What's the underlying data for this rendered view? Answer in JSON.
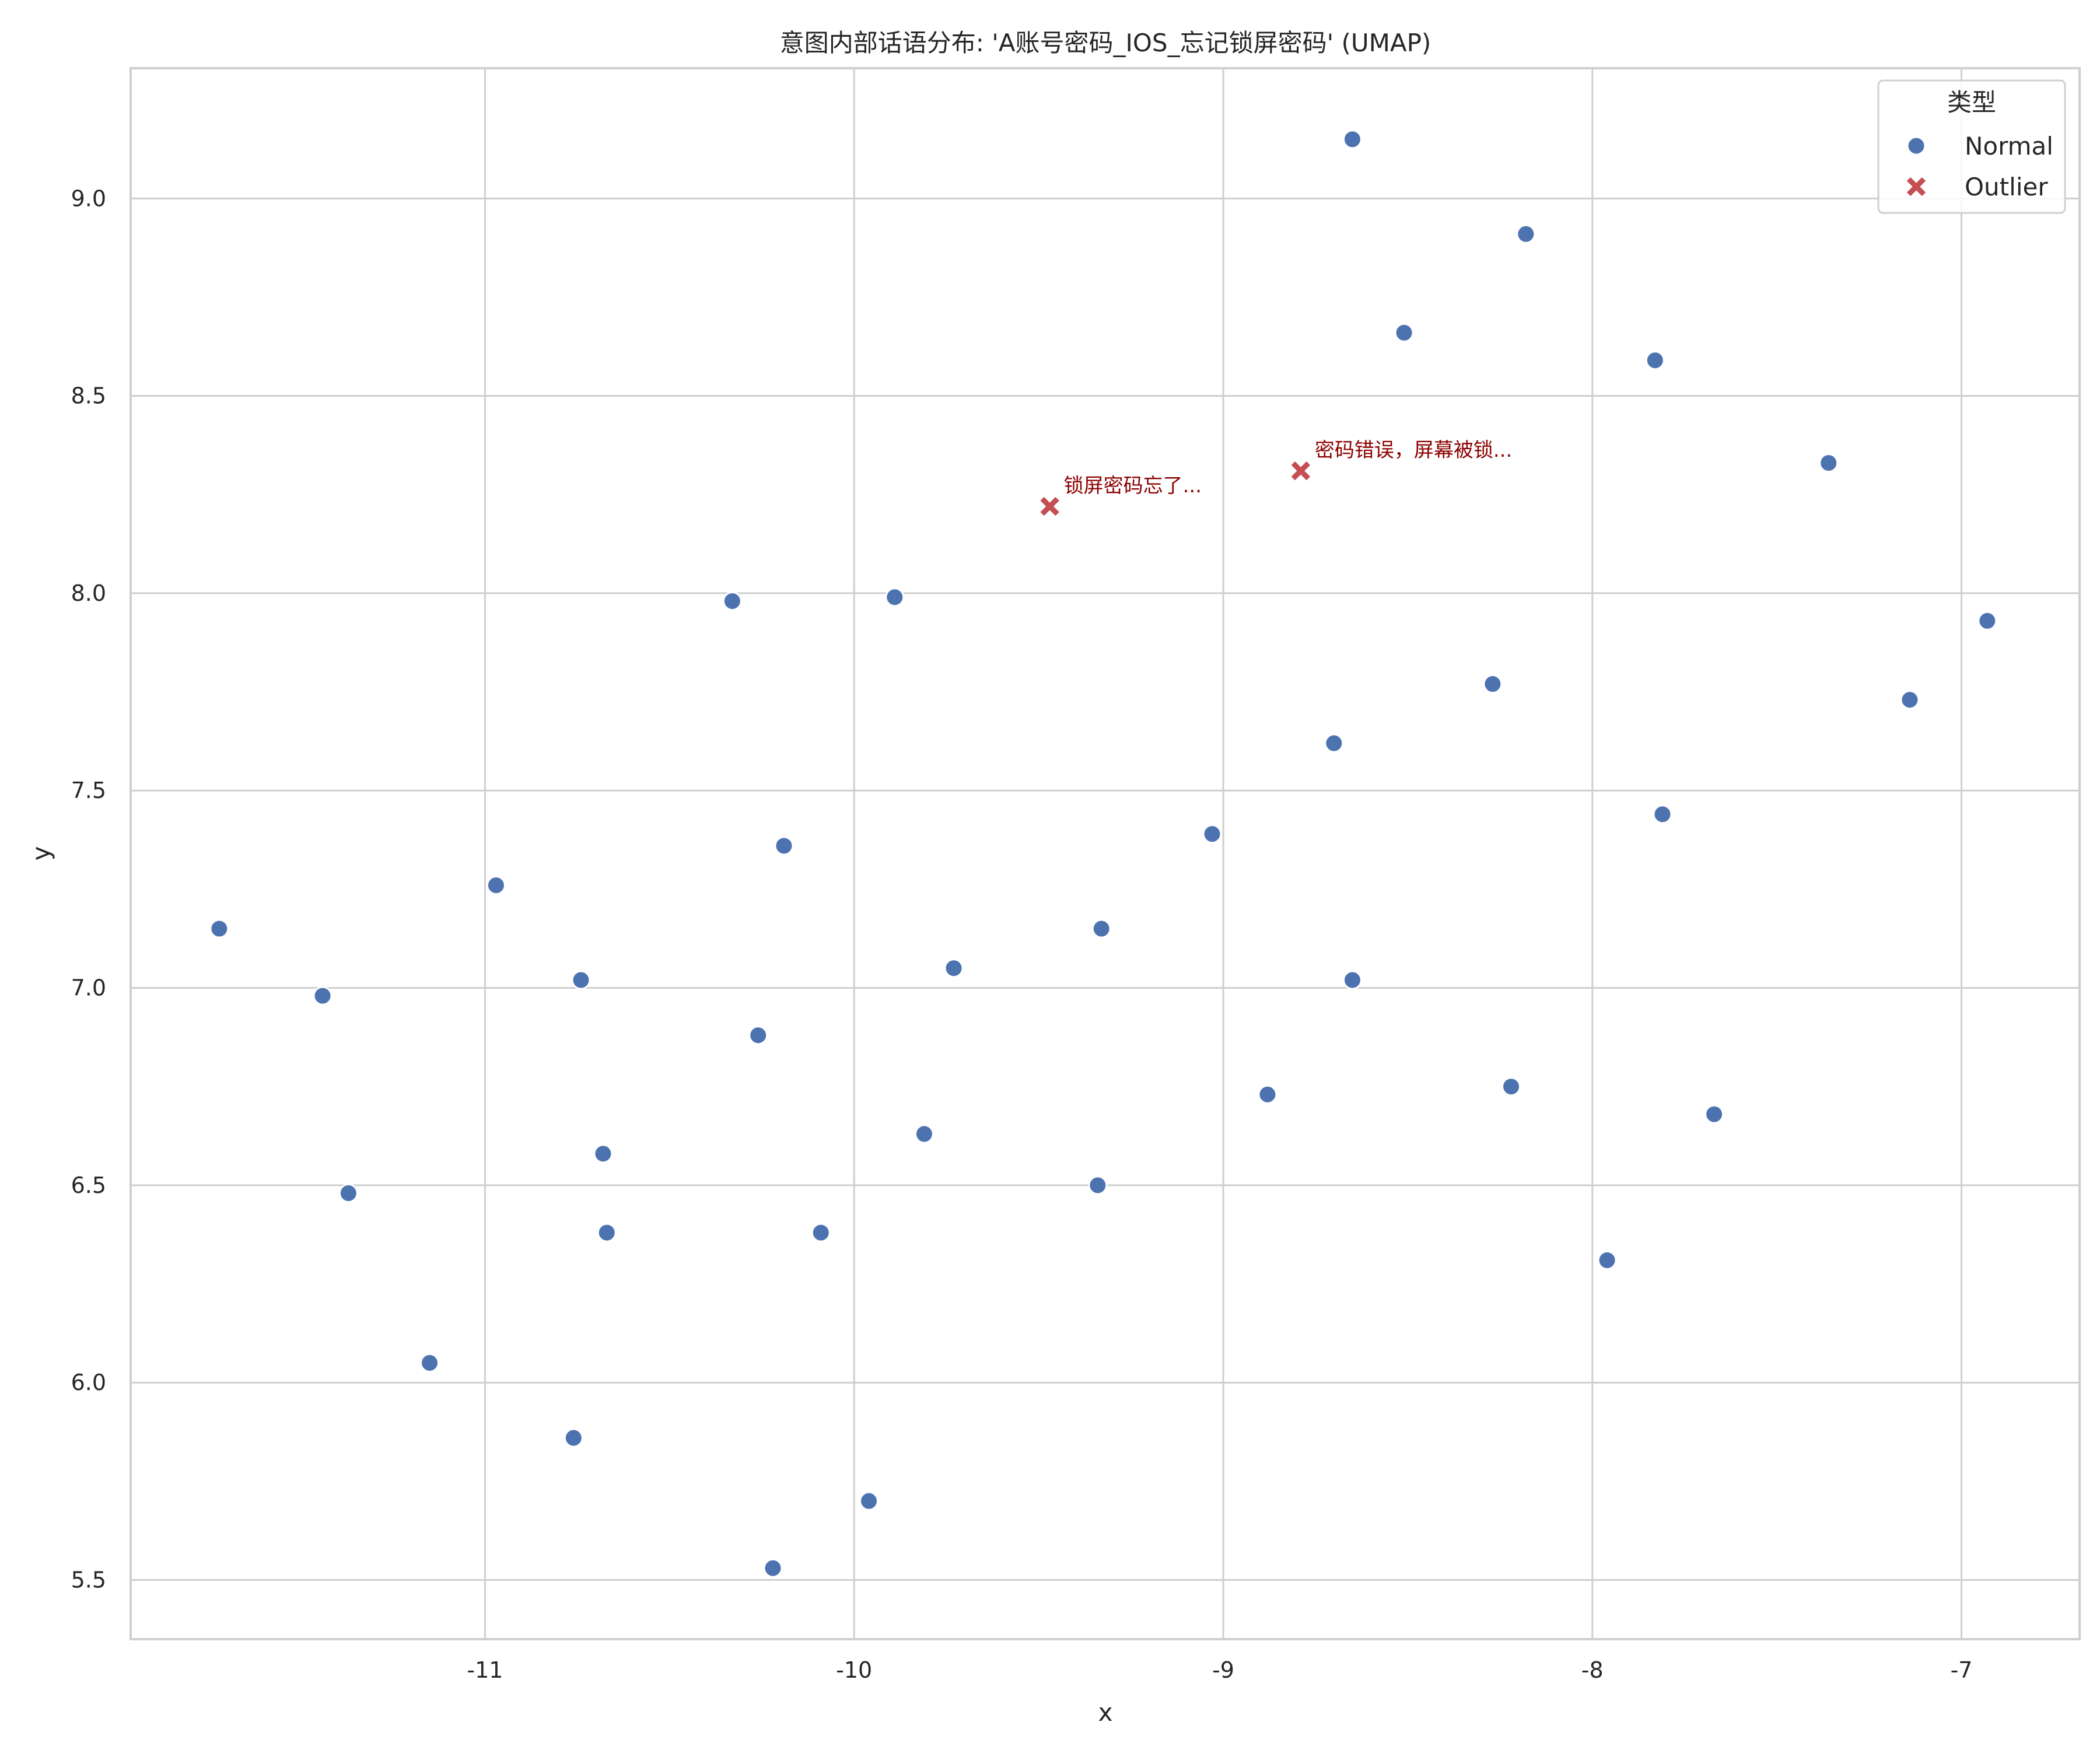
{
  "chart_data": {
    "type": "scatter",
    "title": "意图内部话语分布: 'A账号密码_IOS_忘记锁屏密码' (UMAP)",
    "xlabel": "x",
    "ylabel": "y",
    "xlim": [
      -11.96,
      -6.68
    ],
    "ylim": [
      5.35,
      9.33
    ],
    "xticks": [
      -11,
      -10,
      -9,
      -8,
      -7
    ],
    "yticks": [
      5.5,
      6.0,
      6.5,
      7.0,
      7.5,
      8.0,
      8.5,
      9.0
    ],
    "grid": true,
    "legend": {
      "title": "类型",
      "placement": "top-right",
      "entries": [
        {
          "label": "Normal",
          "marker": "circle",
          "color": "#4c72b0"
        },
        {
          "label": "Outlier",
          "marker": "x",
          "color": "#c44e52"
        }
      ]
    },
    "series": [
      {
        "name": "Normal",
        "color": "#4c72b0",
        "marker": "circle",
        "points": [
          {
            "x": -8.65,
            "y": 9.15
          },
          {
            "x": -8.18,
            "y": 8.91
          },
          {
            "x": -8.51,
            "y": 8.66
          },
          {
            "x": -7.83,
            "y": 8.59
          },
          {
            "x": -7.36,
            "y": 8.33
          },
          {
            "x": -10.33,
            "y": 7.98
          },
          {
            "x": -9.89,
            "y": 7.99
          },
          {
            "x": -6.93,
            "y": 7.93
          },
          {
            "x": -8.27,
            "y": 7.77
          },
          {
            "x": -7.14,
            "y": 7.73
          },
          {
            "x": -8.7,
            "y": 7.62
          },
          {
            "x": -7.81,
            "y": 7.44
          },
          {
            "x": -9.03,
            "y": 7.39
          },
          {
            "x": -10.19,
            "y": 7.36
          },
          {
            "x": -10.97,
            "y": 7.26
          },
          {
            "x": -11.72,
            "y": 7.15
          },
          {
            "x": -9.33,
            "y": 7.15
          },
          {
            "x": -9.73,
            "y": 7.05
          },
          {
            "x": -10.74,
            "y": 7.02
          },
          {
            "x": -8.65,
            "y": 7.02
          },
          {
            "x": -11.44,
            "y": 6.98
          },
          {
            "x": -10.26,
            "y": 6.88
          },
          {
            "x": -8.22,
            "y": 6.75
          },
          {
            "x": -8.88,
            "y": 6.73
          },
          {
            "x": -7.67,
            "y": 6.68
          },
          {
            "x": -9.81,
            "y": 6.63
          },
          {
            "x": -10.68,
            "y": 6.58
          },
          {
            "x": -9.34,
            "y": 6.5
          },
          {
            "x": -11.37,
            "y": 6.48
          },
          {
            "x": -10.09,
            "y": 6.38
          },
          {
            "x": -10.67,
            "y": 6.38
          },
          {
            "x": -7.96,
            "y": 6.31
          },
          {
            "x": -11.15,
            "y": 6.05
          },
          {
            "x": -10.76,
            "y": 5.86
          },
          {
            "x": -9.96,
            "y": 5.7
          },
          {
            "x": -10.22,
            "y": 5.53
          }
        ]
      },
      {
        "name": "Outlier",
        "color": "#c44e52",
        "marker": "x",
        "points": [
          {
            "x": -9.47,
            "y": 8.22,
            "label": "锁屏密码忘了..."
          },
          {
            "x": -8.79,
            "y": 8.31,
            "label": "密码错误，屏幕被锁..."
          }
        ]
      }
    ]
  }
}
